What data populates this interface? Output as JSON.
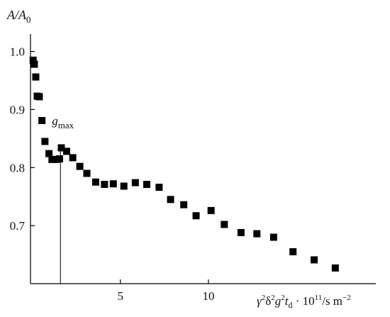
{
  "chart_data": {
    "type": "scatter",
    "title": "",
    "xlabel": "γ²δ²g²t_d · 10¹¹/s m⁻²",
    "ylabel": "A/A₀",
    "xlim": [
      -0.1,
      19.5
    ],
    "ylim": [
      0.6,
      1.03
    ],
    "xticks": [
      5,
      10
    ],
    "yticks": [
      0.7,
      0.8,
      0.9,
      1.0
    ],
    "ytick_labels": [
      "0.7",
      "0.8",
      "0.9",
      "1.0"
    ],
    "grid": false,
    "marker": "square",
    "color": "#000000",
    "annotation": {
      "text": "g_max",
      "x": 1.6
    },
    "points": [
      {
        "x": 0.05,
        "y": 0.985
      },
      {
        "x": 0.12,
        "y": 0.978
      },
      {
        "x": 0.2,
        "y": 0.956
      },
      {
        "x": 0.28,
        "y": 0.923
      },
      {
        "x": 0.4,
        "y": 0.922
      },
      {
        "x": 0.55,
        "y": 0.881
      },
      {
        "x": 0.72,
        "y": 0.845
      },
      {
        "x": 0.95,
        "y": 0.824
      },
      {
        "x": 1.12,
        "y": 0.814
      },
      {
        "x": 1.35,
        "y": 0.814
      },
      {
        "x": 1.55,
        "y": 0.815
      },
      {
        "x": 1.65,
        "y": 0.834
      },
      {
        "x": 1.95,
        "y": 0.828
      },
      {
        "x": 2.3,
        "y": 0.817
      },
      {
        "x": 2.7,
        "y": 0.802
      },
      {
        "x": 3.1,
        "y": 0.79
      },
      {
        "x": 3.6,
        "y": 0.775
      },
      {
        "x": 4.1,
        "y": 0.771
      },
      {
        "x": 4.6,
        "y": 0.772
      },
      {
        "x": 5.2,
        "y": 0.768
      },
      {
        "x": 5.85,
        "y": 0.774
      },
      {
        "x": 6.5,
        "y": 0.771
      },
      {
        "x": 7.2,
        "y": 0.766
      },
      {
        "x": 7.85,
        "y": 0.745
      },
      {
        "x": 8.6,
        "y": 0.736
      },
      {
        "x": 9.3,
        "y": 0.717
      },
      {
        "x": 10.15,
        "y": 0.726
      },
      {
        "x": 10.9,
        "y": 0.702
      },
      {
        "x": 11.85,
        "y": 0.688
      },
      {
        "x": 12.75,
        "y": 0.686
      },
      {
        "x": 13.7,
        "y": 0.68
      },
      {
        "x": 14.8,
        "y": 0.655
      },
      {
        "x": 16.0,
        "y": 0.641
      },
      {
        "x": 17.2,
        "y": 0.627
      }
    ]
  }
}
